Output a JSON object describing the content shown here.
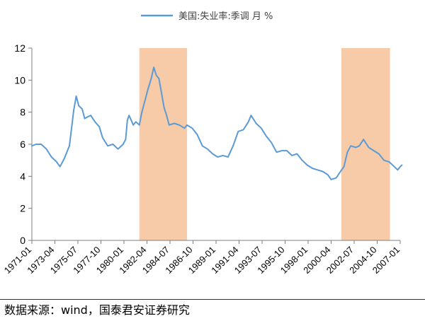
{
  "chart_data": {
    "type": "line",
    "title": "",
    "xlabel": "",
    "ylabel": "",
    "ylim": [
      0,
      12
    ],
    "yticks": [
      "0",
      "2",
      "4",
      "6",
      "8",
      "10",
      "12"
    ],
    "xticks": [
      "1971-01",
      "1973-04",
      "1975-07",
      "1977-10",
      "1980-01",
      "1982-04",
      "1984-07",
      "1986-10",
      "1989-01",
      "1991-04",
      "1993-07",
      "1995-10",
      "1998-01",
      "2000-04",
      "2002-07",
      "2004-10",
      "2007-01"
    ],
    "xlim": [
      "1971-01",
      "2007-01"
    ],
    "legend": {
      "position": "top",
      "label": "美国:失业率:季调 月 %"
    },
    "grid": false,
    "colors": {
      "line": "#5B9BD5",
      "band": "#F8CBA8"
    },
    "shaded_periods": [
      {
        "start": "1981-07",
        "end": "1986-03"
      },
      {
        "start": "2001-04",
        "end": "2006-01"
      }
    ],
    "series": [
      {
        "name": "美国:失业率:季调 月 %",
        "points": [
          [
            "1971-01",
            5.9
          ],
          [
            "1971-06",
            6.0
          ],
          [
            "1971-12",
            6.0
          ],
          [
            "1972-06",
            5.7
          ],
          [
            "1972-12",
            5.2
          ],
          [
            "1973-06",
            4.9
          ],
          [
            "1973-10",
            4.6
          ],
          [
            "1974-03",
            5.1
          ],
          [
            "1974-09",
            5.9
          ],
          [
            "1974-12",
            7.2
          ],
          [
            "1975-02",
            8.1
          ],
          [
            "1975-05",
            9.0
          ],
          [
            "1975-08",
            8.4
          ],
          [
            "1975-12",
            8.2
          ],
          [
            "1976-03",
            7.6
          ],
          [
            "1976-06",
            7.7
          ],
          [
            "1976-10",
            7.8
          ],
          [
            "1977-03",
            7.4
          ],
          [
            "1977-08",
            7.1
          ],
          [
            "1977-12",
            6.4
          ],
          [
            "1978-06",
            5.9
          ],
          [
            "1978-12",
            6.0
          ],
          [
            "1979-06",
            5.7
          ],
          [
            "1979-12",
            6.0
          ],
          [
            "1980-03",
            6.3
          ],
          [
            "1980-05",
            7.5
          ],
          [
            "1980-07",
            7.8
          ],
          [
            "1980-12",
            7.2
          ],
          [
            "1981-03",
            7.4
          ],
          [
            "1981-07",
            7.2
          ],
          [
            "1981-10",
            8.0
          ],
          [
            "1982-01",
            8.6
          ],
          [
            "1982-05",
            9.4
          ],
          [
            "1982-09",
            10.1
          ],
          [
            "1982-12",
            10.8
          ],
          [
            "1983-03",
            10.3
          ],
          [
            "1983-06",
            10.1
          ],
          [
            "1983-09",
            9.2
          ],
          [
            "1983-12",
            8.3
          ],
          [
            "1984-03",
            7.8
          ],
          [
            "1984-06",
            7.2
          ],
          [
            "1984-12",
            7.3
          ],
          [
            "1985-06",
            7.2
          ],
          [
            "1985-12",
            7.0
          ],
          [
            "1986-03",
            7.2
          ],
          [
            "1986-09",
            7.0
          ],
          [
            "1987-03",
            6.6
          ],
          [
            "1987-09",
            5.9
          ],
          [
            "1988-03",
            5.7
          ],
          [
            "1988-09",
            5.4
          ],
          [
            "1989-03",
            5.2
          ],
          [
            "1989-09",
            5.3
          ],
          [
            "1990-03",
            5.2
          ],
          [
            "1990-09",
            5.9
          ],
          [
            "1991-03",
            6.8
          ],
          [
            "1991-09",
            6.9
          ],
          [
            "1992-03",
            7.4
          ],
          [
            "1992-06",
            7.8
          ],
          [
            "1992-12",
            7.3
          ],
          [
            "1993-06",
            7.0
          ],
          [
            "1993-12",
            6.5
          ],
          [
            "1994-06",
            6.1
          ],
          [
            "1994-12",
            5.5
          ],
          [
            "1995-06",
            5.6
          ],
          [
            "1995-12",
            5.6
          ],
          [
            "1996-06",
            5.3
          ],
          [
            "1996-12",
            5.4
          ],
          [
            "1997-06",
            5.0
          ],
          [
            "1997-12",
            4.7
          ],
          [
            "1998-06",
            4.5
          ],
          [
            "1998-12",
            4.4
          ],
          [
            "1999-06",
            4.3
          ],
          [
            "1999-12",
            4.1
          ],
          [
            "2000-04",
            3.8
          ],
          [
            "2000-10",
            3.9
          ],
          [
            "2001-03",
            4.3
          ],
          [
            "2001-07",
            4.6
          ],
          [
            "2001-11",
            5.5
          ],
          [
            "2002-03",
            5.9
          ],
          [
            "2002-09",
            5.8
          ],
          [
            "2003-01",
            5.9
          ],
          [
            "2003-06",
            6.3
          ],
          [
            "2003-12",
            5.8
          ],
          [
            "2004-06",
            5.6
          ],
          [
            "2004-12",
            5.4
          ],
          [
            "2005-06",
            5.0
          ],
          [
            "2005-12",
            4.9
          ],
          [
            "2006-06",
            4.6
          ],
          [
            "2006-10",
            4.4
          ],
          [
            "2007-01",
            4.6
          ],
          [
            "2007-03",
            4.7
          ]
        ]
      }
    ]
  },
  "source": {
    "text": "数据来源：wind，国泰君安证券研究"
  }
}
